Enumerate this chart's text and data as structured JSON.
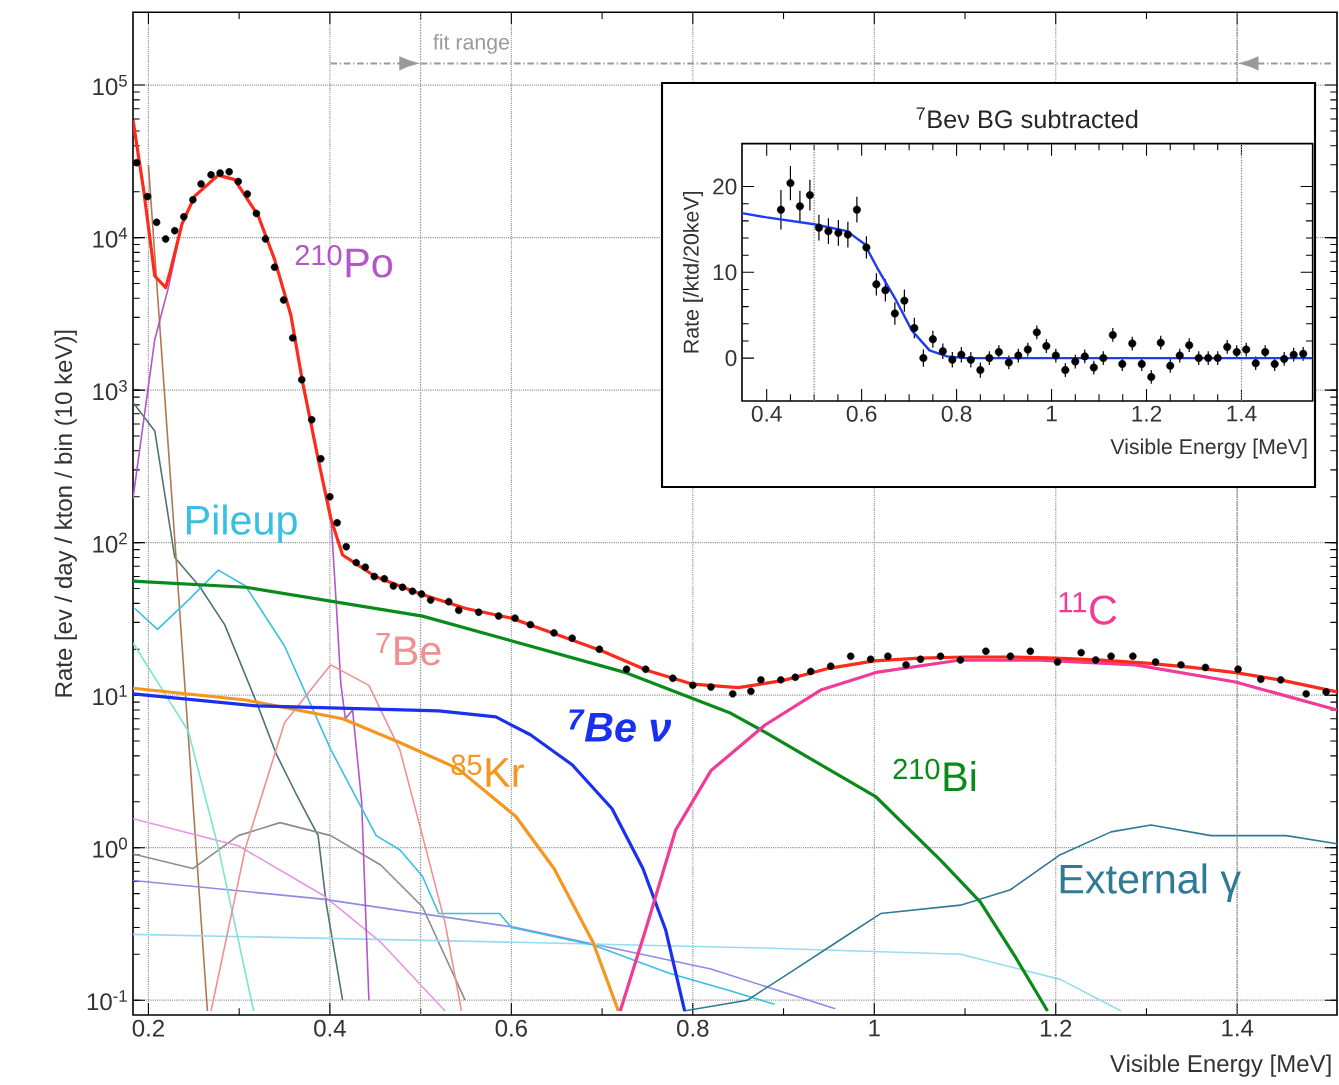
{
  "chart_data": [
    {
      "type": "line",
      "xlabel": "Visible Energy [MeV]",
      "ylabel": "Rate [ev / day / kton / bin (10 keV)]",
      "xlim": [
        0.183,
        1.51
      ],
      "ylim": [
        0.08,
        300000
      ],
      "log": "y",
      "grid": true,
      "xticks": [
        0.2,
        0.4,
        0.6,
        0.8,
        1,
        1.2,
        1.4
      ],
      "yticks": [
        {
          "value": 0.1,
          "label": "10$^{-1}$"
        },
        {
          "value": 1,
          "label": "10$^{0}$"
        },
        {
          "value": 10,
          "label": "10$^{1}$"
        },
        {
          "value": 100,
          "label": "10$^{2}$"
        },
        {
          "value": 1000,
          "label": "10$^{3}$"
        },
        {
          "value": 10000,
          "label": "10$^{4}$"
        },
        {
          "value": 100000,
          "label": "10$^{5}$"
        }
      ],
      "ref_lines": [
        {
          "axis": "x",
          "value": 0.5,
          "color": "#8c8c8c"
        },
        {
          "axis": "x",
          "value": 1.4,
          "color": "#8c8c8c"
        }
      ],
      "annotations": [
        "fit range"
      ],
      "series": [
        {
          "type": "line",
          "color": "#4f7373",
          "x": [
            0.183,
            0.207,
            0.229,
            0.256,
            0.284,
            0.32,
            0.341,
            0.362,
            0.387,
            0.396,
            0.414
          ],
          "values": [
            830,
            540,
            80,
            52,
            29,
            8.7,
            4.1,
            2.3,
            1.2,
            0.43,
            0.1
          ]
        },
        {
          "type": "line",
          "color": "#b07850",
          "x": [
            0.2,
            0.226,
            0.245,
            0.265
          ],
          "values": [
            30000,
            190,
            4.4,
            0.085
          ]
        },
        {
          "type": "line",
          "color": "#8c8c8c",
          "x": [
            0.183,
            0.249,
            0.299,
            0.345,
            0.401,
            0.456,
            0.502,
            0.549
          ],
          "values": [
            0.91,
            0.73,
            1.2,
            1.46,
            1.2,
            0.77,
            0.41,
            0.1
          ]
        },
        {
          "type": "line",
          "color": "#e696e6",
          "x": [
            0.183,
            0.299,
            0.392,
            0.456,
            0.527
          ],
          "values": [
            1.55,
            1.03,
            0.49,
            0.24,
            0.085
          ]
        },
        {
          "type": "line",
          "color": "#8c8ce6",
          "x": [
            0.183,
            0.392,
            0.605,
            0.654,
            0.82,
            0.957
          ],
          "values": [
            0.61,
            0.46,
            0.3,
            0.26,
            0.16,
            0.088
          ]
        },
        {
          "type": "line",
          "color": "#96dcf0",
          "x": [
            0.183,
            0.605,
            0.875,
            1.095,
            1.205,
            1.272
          ],
          "values": [
            0.27,
            0.24,
            0.22,
            0.2,
            0.137,
            0.085
          ]
        },
        {
          "type": "line",
          "color": "#78e6d2",
          "x": [
            0.183,
            0.244,
            0.277,
            0.316
          ],
          "values": [
            22,
            5.8,
            1.0,
            0.085
          ]
        },
        {
          "type": "line",
          "name": "$^{210}$Po",
          "color": "#b455c8",
          "x": [
            0.183,
            0.207,
            0.222,
            0.237,
            0.251,
            0.277,
            0.295,
            0.321,
            0.339,
            0.357,
            0.37,
            0.387,
            0.401,
            0.407,
            0.412,
            0.417,
            0.425,
            0.435,
            0.44,
            0.443
          ],
          "values": [
            195,
            2150,
            4700,
            12300,
            18700,
            25700,
            24000,
            13900,
            7200,
            3100,
            1120,
            355,
            150,
            40,
            12,
            7,
            8,
            2,
            0.3,
            0.1
          ]
        },
        {
          "type": "line",
          "name": "Pileup",
          "color": "#38c0e0",
          "x": [
            0.185,
            0.21,
            0.244,
            0.277,
            0.307,
            0.35,
            0.401,
            0.451,
            0.477,
            0.502,
            0.52,
            0.587,
            0.6,
            0.69,
            0.774,
            0.842,
            0.89
          ],
          "values": [
            37,
            27,
            42,
            66,
            52,
            21,
            4.4,
            1.2,
            0.97,
            0.65,
            0.37,
            0.37,
            0.3,
            0.23,
            0.15,
            0.115,
            0.094
          ]
        },
        {
          "type": "line",
          "name": "$^{7}$Be",
          "color": "#f09090",
          "x": [
            0.269,
            0.307,
            0.35,
            0.401,
            0.443,
            0.477,
            0.502,
            0.527,
            0.545
          ],
          "values": [
            0.085,
            1.0,
            6.6,
            15.8,
            11.6,
            4.4,
            1.2,
            0.32,
            0.085
          ]
        },
        {
          "type": "line",
          "name": "External γ",
          "color": "#2f7b95",
          "x": [
            0.79,
            0.86,
            0.913,
            0.963,
            1.007,
            1.095,
            1.15,
            1.205,
            1.261,
            1.305,
            1.371,
            1.454,
            1.51
          ],
          "values": [
            0.085,
            0.1,
            0.16,
            0.25,
            0.37,
            0.42,
            0.53,
            0.9,
            1.27,
            1.41,
            1.2,
            1.2,
            1.06
          ]
        },
        {
          "type": "line",
          "name": "$^{85}$Kr",
          "color": "#f5961e",
          "x": [
            0.183,
            0.307,
            0.414,
            0.477,
            0.541,
            0.605,
            0.647,
            0.69,
            0.718
          ],
          "values": [
            11.1,
            9.3,
            7,
            4.9,
            3.3,
            1.6,
            0.73,
            0.24,
            0.085
          ]
        },
        {
          "type": "line",
          "name": "$^{7}$Be ν",
          "color": "#1a30f0",
          "x": [
            0.183,
            0.32,
            0.52,
            0.583,
            0.621,
            0.667,
            0.711,
            0.745,
            0.77,
            0.791
          ],
          "values": [
            10.2,
            8.5,
            7.9,
            7.2,
            5.5,
            3.5,
            1.8,
            0.73,
            0.29,
            0.085
          ]
        },
        {
          "type": "line",
          "name": "$^{210}$Bi",
          "color": "#0a8a1a",
          "x": [
            0.183,
            0.307,
            0.502,
            0.727,
            0.842,
            0.88,
            1.002,
            1.073,
            1.117,
            1.156,
            1.191
          ],
          "values": [
            56,
            51,
            33,
            14,
            7.6,
            5.7,
            2.15,
            0.83,
            0.44,
            0.19,
            0.085
          ]
        },
        {
          "type": "line",
          "name": "$^{11}$C",
          "color": "#f03c96",
          "x": [
            0.72,
            0.748,
            0.781,
            0.82,
            0.88,
            0.941,
            1.002,
            1.095,
            1.183,
            1.288,
            1.398,
            1.51
          ],
          "values": [
            0.085,
            0.29,
            1.3,
            3.2,
            6.4,
            10.8,
            14.1,
            17,
            17,
            15.8,
            12.2,
            8
          ]
        },
        {
          "type": "line",
          "color": "#ff2a1a",
          "x": [
            0.183,
            0.195,
            0.207,
            0.219,
            0.224,
            0.237,
            0.251,
            0.277,
            0.295,
            0.321,
            0.339,
            0.357,
            0.37,
            0.387,
            0.401,
            0.414,
            0.427,
            0.45,
            0.5,
            0.55,
            0.6,
            0.65,
            0.7,
            0.75,
            0.8,
            0.85,
            0.9,
            0.95,
            1.0,
            1.05,
            1.1,
            1.15,
            1.2,
            1.25,
            1.3,
            1.35,
            1.4,
            1.45,
            1.51
          ],
          "values": [
            59000,
            20000,
            5600,
            4700,
            6000,
            12300,
            18700,
            25700,
            24000,
            13900,
            7200,
            3100,
            1120,
            355,
            144,
            83,
            74,
            60,
            46,
            37,
            32,
            25,
            19.5,
            14.5,
            11.8,
            11.2,
            12.5,
            15,
            16.8,
            17.5,
            17.8,
            17.8,
            17.5,
            17,
            16.2,
            15.2,
            14,
            12.5,
            10.5
          ]
        },
        {
          "type": "scatter",
          "color": "#000000",
          "x": [
            0.187,
            0.199,
            0.209,
            0.219,
            0.229,
            0.239,
            0.249,
            0.258,
            0.269,
            0.279,
            0.289,
            0.299,
            0.309,
            0.319,
            0.329,
            0.339,
            0.349,
            0.359,
            0.369,
            0.38,
            0.39,
            0.4,
            0.408,
            0.418,
            0.429,
            0.439,
            0.449,
            0.46,
            0.47,
            0.48,
            0.491,
            0.501,
            0.511,
            0.531,
            0.542,
            0.564,
            0.586,
            0.604,
            0.621,
            0.647,
            0.667,
            0.697,
            0.727,
            0.748,
            0.778,
            0.8,
            0.82,
            0.844,
            0.864,
            0.875,
            0.897,
            0.913,
            0.93,
            0.952,
            0.974,
            0.996,
            1.015,
            1.035,
            1.051,
            1.073,
            1.095,
            1.123,
            1.15,
            1.172,
            1.202,
            1.228,
            1.244,
            1.261,
            1.285,
            1.31,
            1.338,
            1.365,
            1.401,
            1.426,
            1.448,
            1.476,
            1.498
          ],
          "values": [
            31000,
            18600,
            12600,
            9800,
            11100,
            13700,
            17700,
            22500,
            25800,
            26500,
            27000,
            23300,
            19300,
            14400,
            9800,
            6400,
            3900,
            2200,
            1170,
            640,
            355,
            200,
            135,
            94,
            74,
            69,
            60,
            58,
            52,
            51,
            48,
            46,
            42,
            41,
            36,
            35,
            33,
            32,
            29,
            25.6,
            23.6,
            20,
            14.8,
            14.8,
            12.9,
            11.6,
            11.3,
            10.2,
            10.6,
            12.6,
            12.6,
            13.1,
            14.3,
            15.5,
            18,
            17.2,
            18,
            15.8,
            17.2,
            18,
            17,
            19.4,
            18,
            19.4,
            16.5,
            19,
            17,
            18,
            18,
            16.5,
            15.8,
            15.2,
            14.8,
            12.7,
            12.6,
            10.2,
            10.5
          ]
        }
      ]
    },
    {
      "type": "line",
      "title": "$^{7}$Beν BG subtracted",
      "xlabel": "Visible Energy [MeV]",
      "ylabel": "Rate [/ktd/20keV]",
      "xlim": [
        0.348,
        1.55
      ],
      "ylim": [
        -5,
        25
      ],
      "xticks": [
        0.4,
        0.6,
        0.8,
        1,
        1.2,
        1.4
      ],
      "yticks": [
        0,
        10,
        20
      ],
      "ref_lines": [
        {
          "axis": "x",
          "value": 0.5,
          "color": "#8c8c8c"
        },
        {
          "axis": "x",
          "value": 1.4,
          "color": "#8c8c8c"
        }
      ],
      "series": [
        {
          "type": "scatter",
          "color": "#000000",
          "x": [
            0.43,
            0.45,
            0.47,
            0.491,
            0.51,
            0.53,
            0.551,
            0.571,
            0.59,
            0.61,
            0.631,
            0.65,
            0.67,
            0.69,
            0.711,
            0.73,
            0.75,
            0.771,
            0.791,
            0.81,
            0.83,
            0.85,
            0.869,
            0.889,
            0.91,
            0.93,
            0.95,
            0.969,
            0.989,
            1.009,
            1.029,
            1.05,
            1.07,
            1.089,
            1.109,
            1.129,
            1.149,
            1.17,
            1.19,
            1.21,
            1.23,
            1.25,
            1.27,
            1.29,
            1.31,
            1.33,
            1.35,
            1.37,
            1.39,
            1.41,
            1.43,
            1.45,
            1.47,
            1.49,
            1.51,
            1.53
          ],
          "values": [
            17.3,
            20.4,
            17.7,
            19.0,
            15.2,
            14.8,
            14.6,
            14.4,
            17.3,
            12.9,
            8.6,
            7.9,
            5.2,
            6.7,
            3.5,
            0.0,
            2.2,
            0.8,
            -0.2,
            0.4,
            -0.2,
            -1.4,
            0,
            0.7,
            -0.5,
            0.3,
            1.0,
            3.0,
            1.4,
            0.3,
            -1.4,
            -0.4,
            0.2,
            -1.1,
            0,
            2.7,
            -0.7,
            1.7,
            -0.7,
            -2.2,
            1.8,
            -0.9,
            0.3,
            1.5,
            0,
            0,
            0,
            1.3,
            0.7,
            1.0,
            -0.6,
            0.7,
            -0.7,
            -0.1,
            0.4,
            0.5
          ],
          "errors": [
            2.3,
            2.0,
            1.8,
            1.8,
            1.5,
            1.5,
            1.5,
            1.5,
            1.5,
            1.3,
            1.3,
            1.3,
            1.3,
            1.3,
            1.2,
            1.0,
            1.0,
            0.9,
            0.9,
            0.9,
            0.9,
            0.9,
            0.8,
            0.8,
            0.8,
            0.8,
            0.8,
            0.8,
            0.8,
            0.8,
            0.8,
            0.8,
            0.8,
            0.8,
            0.8,
            0.8,
            0.8,
            0.8,
            0.8,
            0.8,
            0.8,
            0.8,
            0.8,
            0.8,
            0.8,
            0.8,
            0.8,
            0.8,
            0.8,
            0.8,
            0.8,
            0.8,
            0.8,
            0.8,
            0.8,
            0.8
          ]
        },
        {
          "type": "line",
          "color": "#1f3cf0",
          "x": [
            0.348,
            0.4,
            0.5,
            0.569,
            0.606,
            0.633,
            0.67,
            0.706,
            0.743,
            0.78,
            0.82,
            1.55
          ],
          "values": [
            16.9,
            16.4,
            15.6,
            14.8,
            13.3,
            10.5,
            7.0,
            3.2,
            0.9,
            0.2,
            0,
            0
          ]
        }
      ]
    }
  ]
}
